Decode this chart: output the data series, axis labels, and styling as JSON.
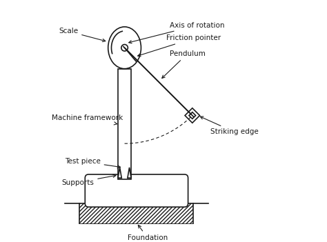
{
  "title": "",
  "bg_color": "#ffffff",
  "line_color": "#1a1a1a",
  "labels": {
    "axis_of_rotation": "Axis of rotation",
    "friction_pointer": "Friction pointer",
    "pendulum": "Pendulum",
    "scale": "Scale",
    "machine_framework": "Machine framework",
    "test_piece": "Test piece",
    "supports": "Supports",
    "striking_edge": "Striking edge",
    "foundation": "Foundation"
  },
  "figsize": [
    4.74,
    3.51
  ],
  "dpi": 100
}
